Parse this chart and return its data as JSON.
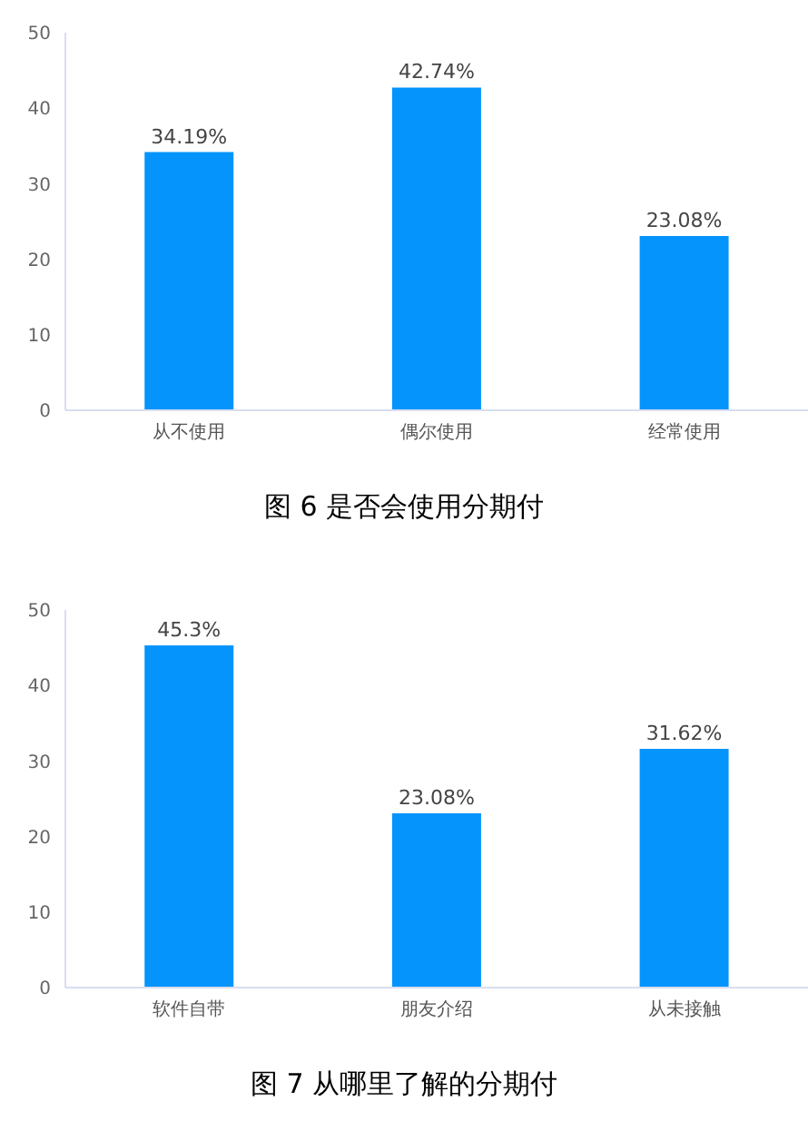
{
  "chart_data": [
    {
      "type": "bar",
      "title": "图 6 是否会使用分期付",
      "categories": [
        "从不使用",
        "偶尔使用",
        "经常使用"
      ],
      "values": [
        34.19,
        42.74,
        23.08
      ],
      "value_labels": [
        "34.19%",
        "42.74%",
        "23.08%"
      ],
      "color": "#0494fc",
      "ylim": [
        0,
        50
      ],
      "yticks": [
        0,
        10,
        20,
        30,
        40,
        50
      ],
      "grid": false,
      "legend": false
    },
    {
      "type": "bar",
      "title": "图 7 从哪里了解的分期付",
      "categories": [
        "软件自带",
        "朋友介绍",
        "从未接触"
      ],
      "values": [
        45.3,
        23.08,
        31.62
      ],
      "value_labels": [
        "45.3%",
        "23.08%",
        "31.62%"
      ],
      "color": "#0494fc",
      "ylim": [
        0,
        50
      ],
      "yticks": [
        0,
        10,
        20,
        30,
        40,
        50
      ],
      "grid": false,
      "legend": false
    }
  ]
}
